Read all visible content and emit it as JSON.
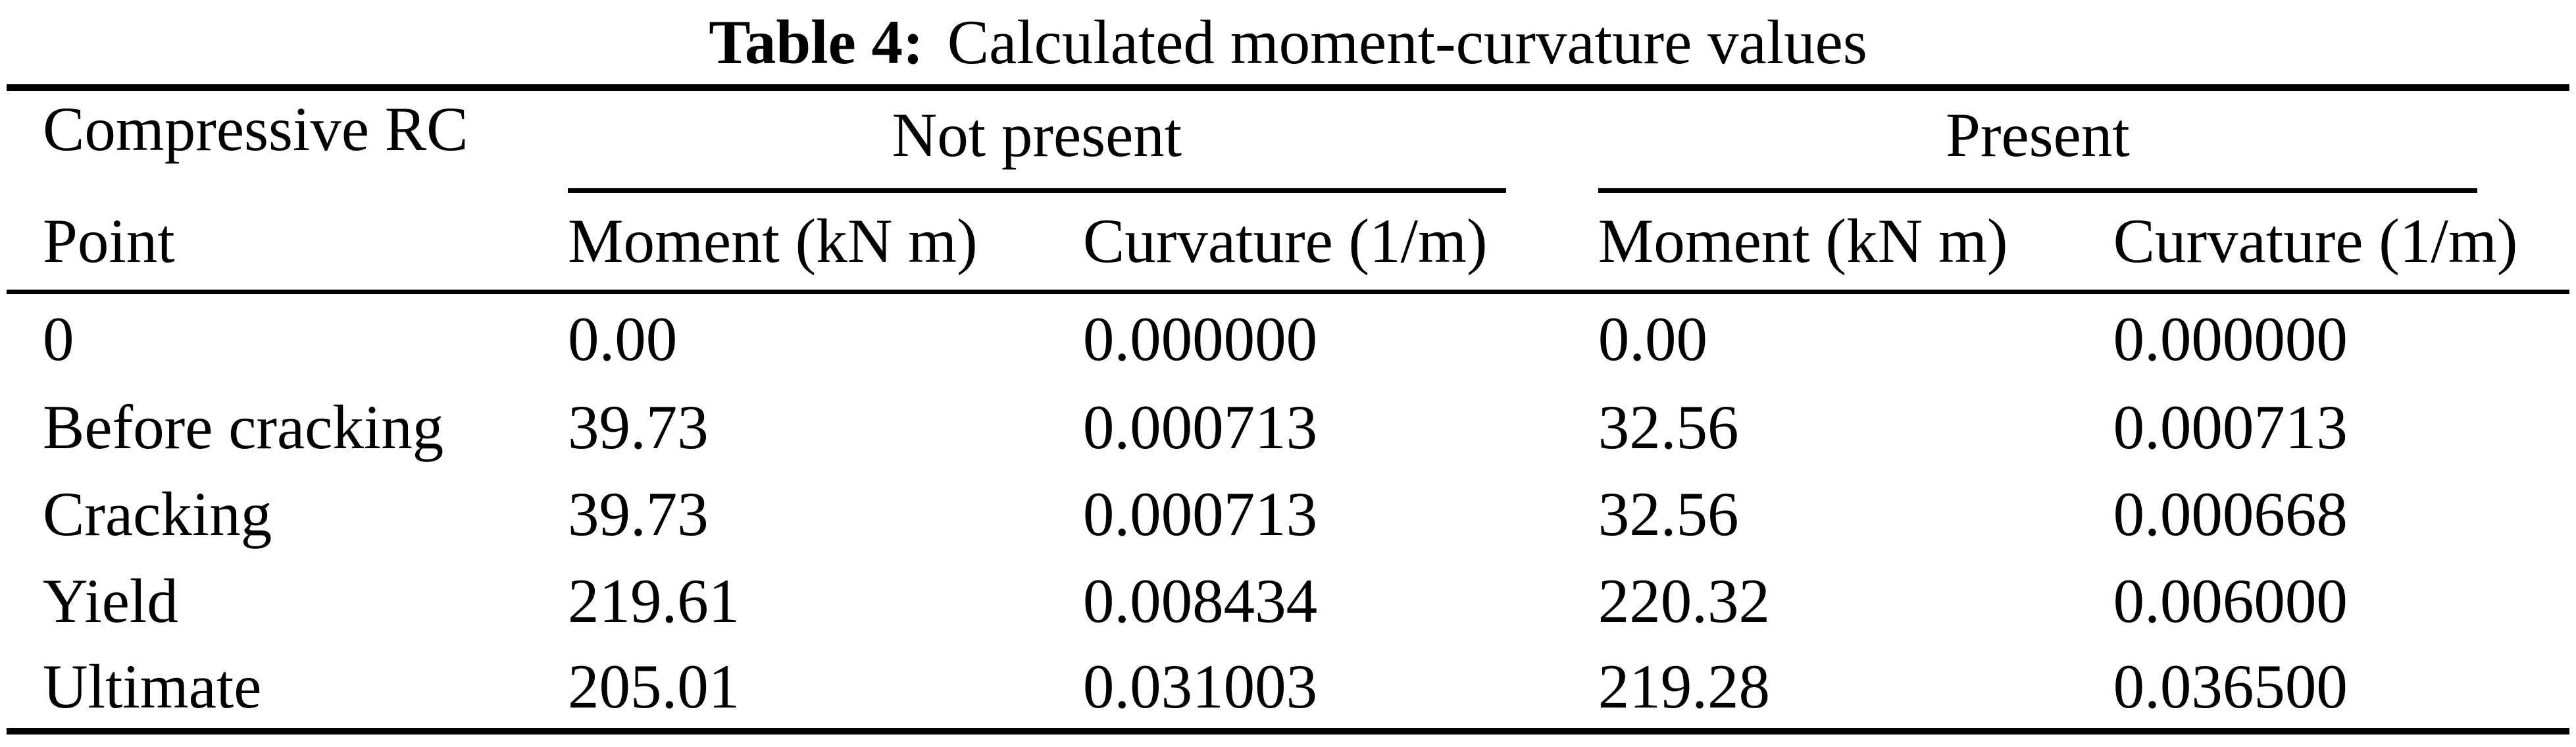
{
  "caption": {
    "label": "Table 4:",
    "title": "Calculated moment-curvature values"
  },
  "table": {
    "corner": {
      "line1": "Compressive RC",
      "line2": "Point"
    },
    "groups": [
      {
        "label": "Not present"
      },
      {
        "label": "Present"
      }
    ],
    "columns": {
      "np_moment": "Moment (kN m)",
      "np_curvature": "Curvature (1/m)",
      "p_moment": "Moment (kN m)",
      "p_curvature": "Curvature (1/m)"
    },
    "rows": [
      {
        "point": "0",
        "np_moment": "0.00",
        "np_curvature": "0.000000",
        "p_moment": "0.00",
        "p_curvature": "0.000000"
      },
      {
        "point": "Before cracking",
        "np_moment": "39.73",
        "np_curvature": "0.000713",
        "p_moment": "32.56",
        "p_curvature": "0.000713"
      },
      {
        "point": "Cracking",
        "np_moment": "39.73",
        "np_curvature": "0.000713",
        "p_moment": "32.56",
        "p_curvature": "0.000668"
      },
      {
        "point": "Yield",
        "np_moment": "219.61",
        "np_curvature": "0.008434",
        "p_moment": "220.32",
        "p_curvature": "0.006000"
      },
      {
        "point": "Ultimate",
        "np_moment": "205.01",
        "np_curvature": "0.031003",
        "p_moment": "219.28",
        "p_curvature": "0.036500"
      }
    ]
  }
}
